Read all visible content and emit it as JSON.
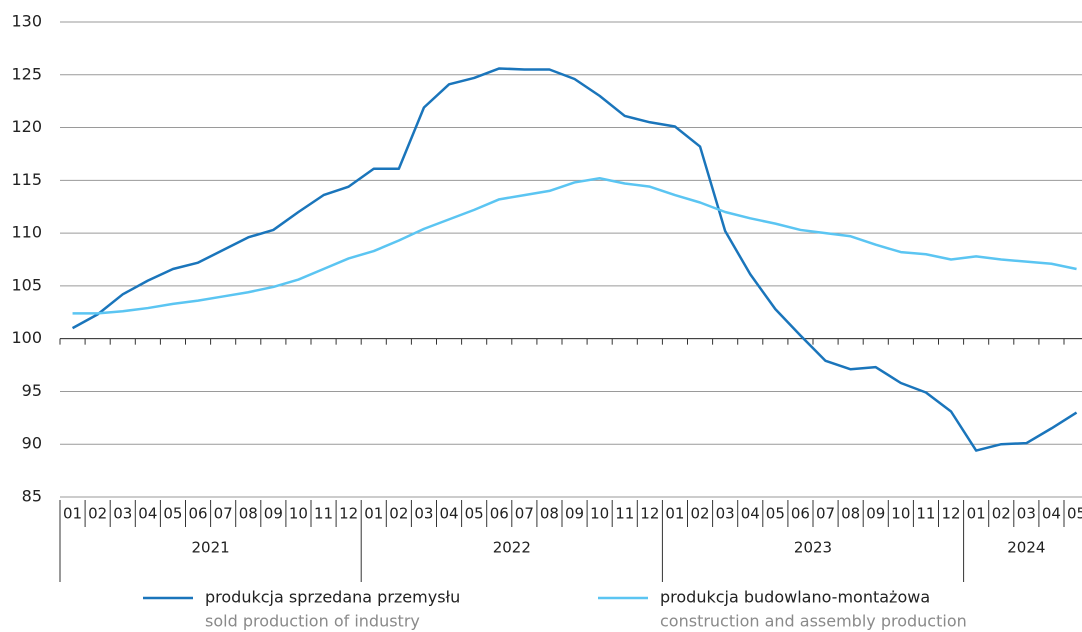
{
  "chart_data": {
    "type": "line",
    "groups": [
      {
        "label": "2021",
        "categories": [
          "01",
          "02",
          "03",
          "04",
          "05",
          "06",
          "07",
          "08",
          "09",
          "10",
          "11",
          "12"
        ]
      },
      {
        "label": "2022",
        "categories": [
          "01",
          "02",
          "03",
          "04",
          "05",
          "06",
          "07",
          "08",
          "09",
          "10",
          "11",
          "12"
        ]
      },
      {
        "label": "2023",
        "categories": [
          "01",
          "02",
          "03",
          "04",
          "05",
          "06",
          "07",
          "08",
          "09",
          "10",
          "11",
          "12"
        ]
      },
      {
        "label": "2024",
        "categories": [
          "01",
          "02",
          "03",
          "04",
          "05"
        ]
      }
    ],
    "series": [
      {
        "name": "produkcja sprzedana przemysłu",
        "subtitle": "sold production of industry",
        "color": "#1a75bb",
        "values": [
          101.0,
          102.3,
          104.2,
          105.5,
          106.6,
          107.2,
          108.4,
          109.6,
          110.3,
          112.0,
          113.6,
          114.4,
          116.1,
          116.1,
          121.9,
          124.1,
          124.7,
          125.6,
          125.5,
          125.5,
          124.6,
          123.0,
          121.1,
          120.5,
          120.1,
          118.2,
          110.2,
          106.1,
          102.8,
          100.3,
          97.9,
          97.1,
          97.3,
          95.8,
          94.9,
          93.1,
          89.4,
          90.0,
          90.1,
          91.5,
          93.0
        ]
      },
      {
        "name": "produkcja budowlano-montażowa",
        "subtitle": "construction and assembly production",
        "color": "#5bc5f2",
        "values": [
          102.4,
          102.4,
          102.6,
          102.9,
          103.3,
          103.6,
          104.0,
          104.4,
          104.9,
          105.6,
          106.6,
          107.6,
          108.3,
          109.3,
          110.4,
          111.3,
          112.2,
          113.2,
          113.6,
          114.0,
          114.8,
          115.2,
          114.7,
          114.4,
          113.6,
          112.9,
          112.0,
          111.4,
          110.9,
          110.3,
          110.0,
          109.7,
          108.9,
          108.2,
          108.0,
          107.5,
          107.8,
          107.5,
          107.3,
          107.1,
          106.6
        ]
      }
    ],
    "ylim": [
      85,
      130
    ],
    "yticks": [
      85,
      90,
      95,
      100,
      105,
      110,
      115,
      120,
      125,
      130
    ],
    "axis_value": 100,
    "grid": true
  }
}
